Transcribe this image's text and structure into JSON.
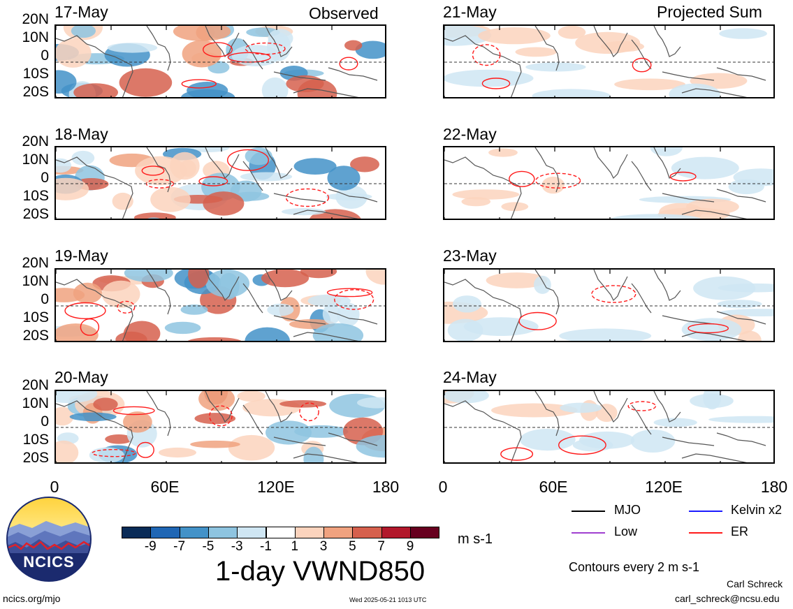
{
  "column_titles": {
    "left": "Observed",
    "right": "Projected Sum"
  },
  "panels_observed": [
    "17-May",
    "18-May",
    "19-May",
    "20-May"
  ],
  "panels_projected": [
    "21-May",
    "22-May",
    "23-May",
    "24-May"
  ],
  "lat_labels": [
    "20N",
    "10N",
    "0",
    "10S",
    "20S"
  ],
  "lon_labels": [
    "0",
    "60E",
    "120E",
    "180"
  ],
  "colorbar": {
    "ticks": [
      "-9",
      "-7",
      "-5",
      "-3",
      "-1",
      "1",
      "3",
      "5",
      "7",
      "9"
    ],
    "colors": [
      "#0a2b57",
      "#1f66b4",
      "#4392c8",
      "#8ec4e0",
      "#cfe6f3",
      "#ffffff",
      "#fbd3bd",
      "#f0a27f",
      "#d6604d",
      "#b2182b",
      "#67001f"
    ],
    "units": "m s-1"
  },
  "main_title": "1-day VWND850",
  "legend": {
    "items": [
      {
        "label": "MJO",
        "color": "#000000"
      },
      {
        "label": "Kelvin x2",
        "color": "#1c1cff"
      },
      {
        "label": "Low",
        "color": "#a040d0"
      },
      {
        "label": "ER",
        "color": "#ff1a1a"
      }
    ],
    "contour_note": "Contours every 2 m s-1"
  },
  "logo": {
    "text": "NCICS"
  },
  "footer": {
    "url": "ncics.org/mjo",
    "timestamp": "Wed 2025-05-21 1013 UTC",
    "author": "Carl Schreck",
    "email": "carl_schreck@ncsu.edu"
  }
}
